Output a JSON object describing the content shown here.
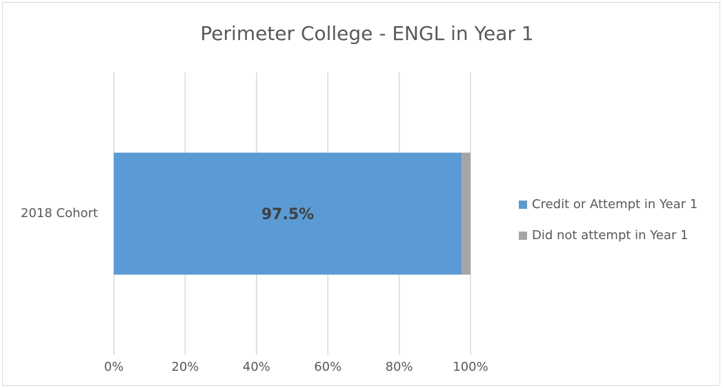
{
  "chart_data": {
    "type": "bar",
    "orientation": "horizontal",
    "stacked": true,
    "title": "Perimeter College - ENGL in Year 1",
    "categories": [
      "2018 Cohort"
    ],
    "series": [
      {
        "name": "Credit or Attempt in Year 1",
        "color": "#5b9bd5",
        "values": [
          97.5
        ],
        "value_labels": [
          "97.5%"
        ]
      },
      {
        "name": "Did not attempt in Year 1",
        "color": "#a5a5a5",
        "values": [
          2.5
        ]
      }
    ],
    "xlim": [
      0,
      100
    ],
    "xticks": [
      {
        "value": 0,
        "label": "0%"
      },
      {
        "value": 20,
        "label": "20%"
      },
      {
        "value": 40,
        "label": "40%"
      },
      {
        "value": 60,
        "label": "60%"
      },
      {
        "value": 80,
        "label": "80%"
      },
      {
        "value": 100,
        "label": "100%"
      }
    ],
    "grid": true,
    "legend": "right"
  }
}
